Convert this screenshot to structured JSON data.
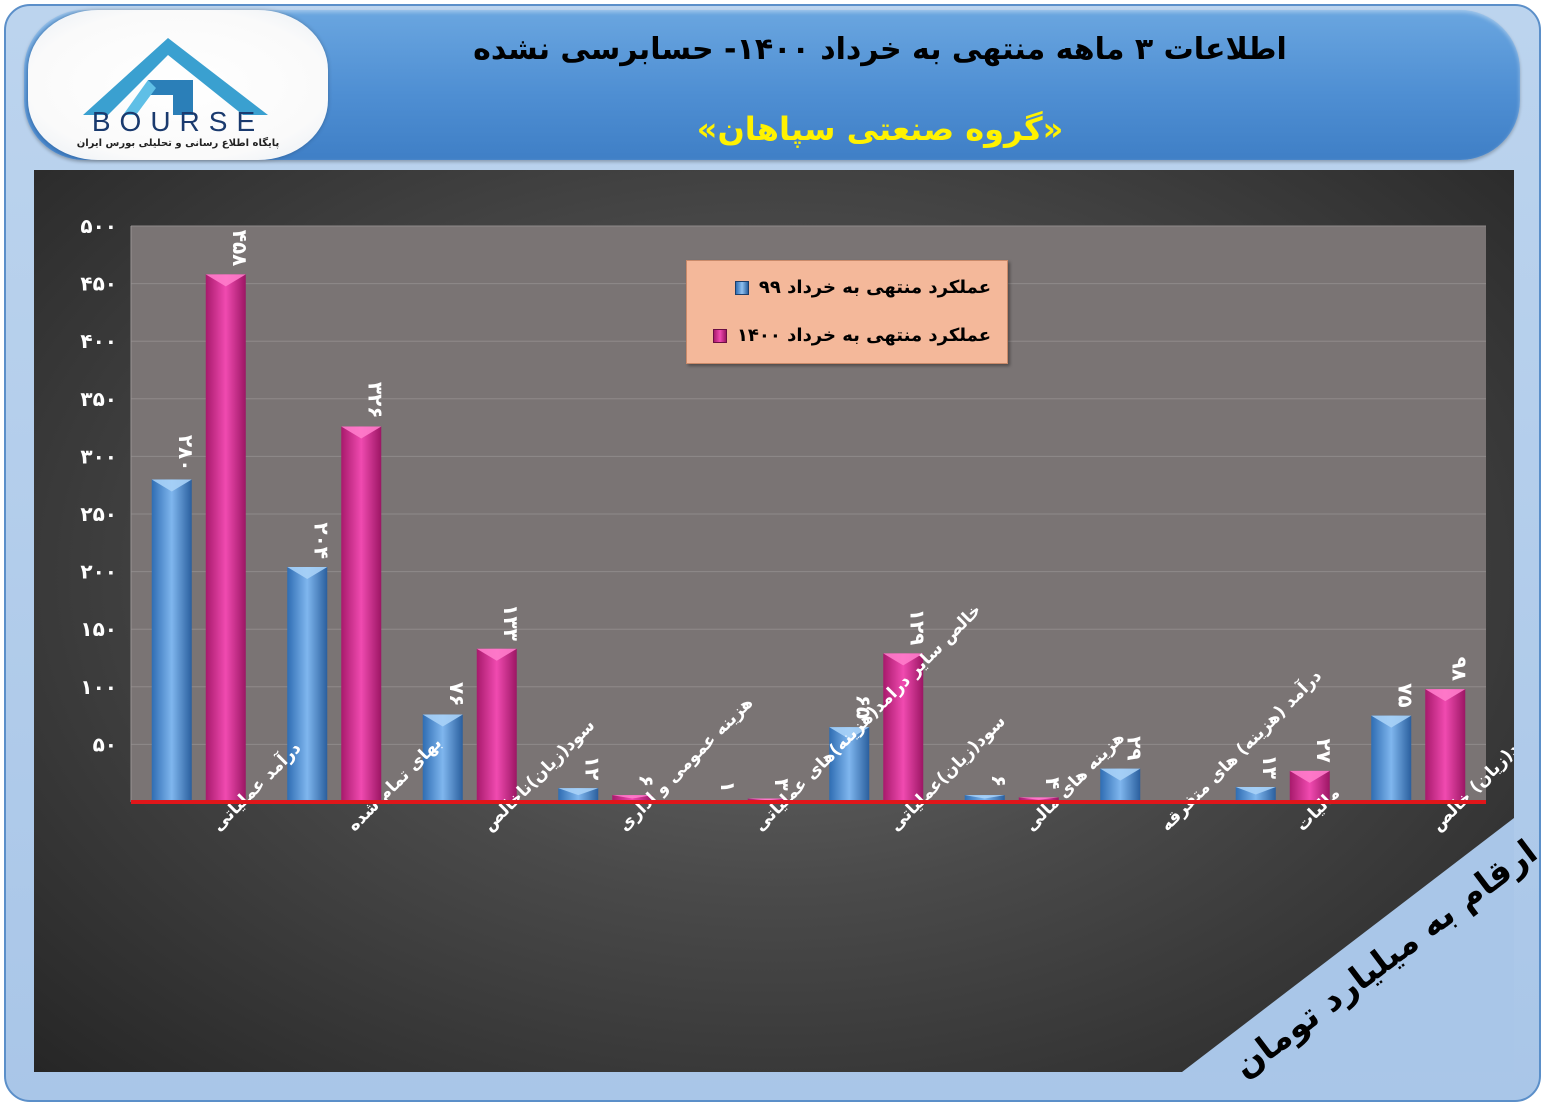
{
  "header": {
    "title": "اطلاعات ۳ ماهه منتهی به خرداد ۱۴۰۰- حسابرسی نشده",
    "subtitle": "«گروه صنعتی سپاهان»"
  },
  "logo": {
    "brand_text": "BOURSE",
    "tagline": "پایگاه اطلاع رسانی و تحلیلی بورس ایران"
  },
  "units_note": "ارقام به میلیارد تومان",
  "colors": {
    "series_99": "#4a8fd6",
    "series_1400": "#d6288f",
    "baseline": "#e0161a",
    "legend_bg": "#f4b89a",
    "header": "#4f8fd3",
    "subtitle": "#fff200"
  },
  "chart_data": {
    "type": "bar",
    "categories": [
      "درآمد عملیاتی",
      "بهای تمام شده",
      "سود(زیان)ناخالص",
      "هزینه عمومی و اداری",
      "خالص سایر درامد(هزینه)های عملیاتی",
      "سود(زیان)عملیاتی",
      "هزینه های مالی",
      "درآمد (هزینه) های متفرقه",
      "مالیات",
      "سود(زیان) خالص"
    ],
    "series": [
      {
        "name": "عملکرد منتهی به خرداد ۹۹",
        "values": [
          280,
          204,
          76,
          12,
          1,
          65,
          6,
          29,
          13,
          75
        ],
        "labels": [
          "۲۸۰",
          "۲۰۴",
          "۷۶",
          "۱۲",
          "۱",
          "۶۵",
          "۶",
          "۲۹",
          "۱۳",
          "۷۵"
        ]
      },
      {
        "name": "عملکرد منتهی به خرداد ۱۴۰۰",
        "values": [
          458,
          326,
          133,
          6,
          3,
          129,
          4,
          null,
          27,
          98
        ],
        "labels": [
          "۴۵۸",
          "۳۲۶",
          "۱۳۳",
          "۶",
          "۳",
          "۱۲۹",
          "۴",
          "",
          "۲۷",
          "۹۸"
        ]
      }
    ],
    "y_ticks": [
      50,
      100,
      150,
      200,
      250,
      300,
      350,
      400,
      450,
      500
    ],
    "y_tick_labels": [
      "۵۰",
      "۱۰۰",
      "۱۵۰",
      "۲۰۰",
      "۲۵۰",
      "۳۰۰",
      "۳۵۰",
      "۴۰۰",
      "۴۵۰",
      "۵۰۰"
    ],
    "ylim": [
      0,
      500
    ],
    "grid": true,
    "legend_position": "top-center"
  }
}
